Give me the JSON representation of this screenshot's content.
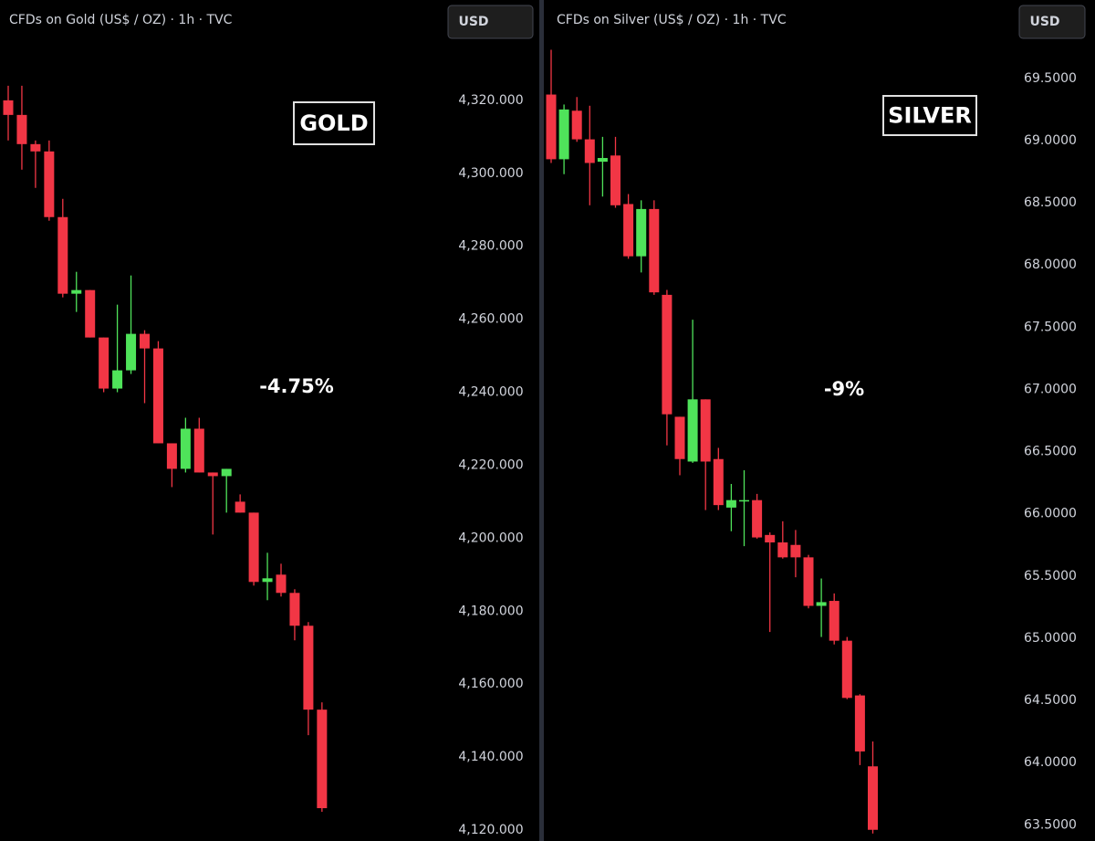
{
  "chart_data": [
    {
      "type": "candlestick",
      "title": "CFDs on Gold (US$ / OZ) · 1h · TVC",
      "currency": "USD",
      "annotations": [
        "GOLD",
        "-4.75%"
      ],
      "up_color": "#4fe35a",
      "down_color": "#f23645",
      "ylim": [
        4117,
        4347.5
      ],
      "yticks": [
        {
          "value": 4320,
          "label": "4,320.000"
        },
        {
          "value": 4300,
          "label": "4,300.000"
        },
        {
          "value": 4280,
          "label": "4,280.000"
        },
        {
          "value": 4260,
          "label": "4,260.000"
        },
        {
          "value": 4240,
          "label": "4,240.000"
        },
        {
          "value": 4220,
          "label": "4,220.000"
        },
        {
          "value": 4200,
          "label": "4,200.000"
        },
        {
          "value": 4180,
          "label": "4,180.000"
        },
        {
          "value": 4160,
          "label": "4,160.000"
        },
        {
          "value": 4140,
          "label": "4,140.000"
        },
        {
          "value": 4120,
          "label": "4,120.000"
        }
      ],
      "open": [
        4320,
        4316,
        4308,
        4306,
        4288,
        4267,
        4268,
        4255,
        4241,
        4246,
        4256,
        4252,
        4226,
        4219,
        4230,
        4218,
        4217,
        4210,
        4207,
        4188,
        4190,
        4185,
        4176,
        4153
      ],
      "high": [
        4324,
        4324,
        4309,
        4309,
        4293,
        4273,
        4268,
        4255,
        4264,
        4272,
        4257,
        4254,
        4226,
        4233,
        4233,
        4218,
        4219,
        4212,
        4207,
        4196,
        4193,
        4186,
        4177,
        4155
      ],
      "low": [
        4309,
        4301,
        4296,
        4287,
        4266,
        4262,
        4255,
        4240,
        4240,
        4245,
        4237,
        4226,
        4214,
        4218,
        4218,
        4201,
        4207,
        4207,
        4187,
        4183,
        4184,
        4172,
        4146,
        4125
      ],
      "close": [
        4316,
        4308,
        4306,
        4288,
        4267,
        4268,
        4255,
        4241,
        4246,
        4256,
        4252,
        4226,
        4219,
        4230,
        4218,
        4217,
        4219,
        4207,
        4188,
        4189,
        4185,
        4176,
        4153,
        4126
      ]
    },
    {
      "type": "candlestick",
      "title": "CFDs on Silver (US$ / OZ) · 1h · TVC",
      "currency": "USD",
      "annotations": [
        "SILVER",
        "-9%"
      ],
      "up_color": "#4fe35a",
      "down_color": "#f23645",
      "ylim": [
        63.37,
        70.13
      ],
      "yticks": [
        {
          "value": 69.5,
          "label": "69.5000"
        },
        {
          "value": 69,
          "label": "69.0000"
        },
        {
          "value": 68.5,
          "label": "68.5000"
        },
        {
          "value": 68,
          "label": "68.0000"
        },
        {
          "value": 67.5,
          "label": "67.5000"
        },
        {
          "value": 67,
          "label": "67.0000"
        },
        {
          "value": 66.5,
          "label": "66.5000"
        },
        {
          "value": 66,
          "label": "66.0000"
        },
        {
          "value": 65.5,
          "label": "65.5000"
        },
        {
          "value": 65,
          "label": "65.0000"
        },
        {
          "value": 64.5,
          "label": "64.5000"
        },
        {
          "value": 64,
          "label": "64.0000"
        },
        {
          "value": 63.5,
          "label": "63.5000"
        }
      ],
      "open": [
        69.37,
        68.85,
        69.24,
        69.01,
        68.83,
        68.88,
        68.49,
        68.07,
        68.45,
        67.76,
        66.78,
        66.42,
        66.92,
        66.44,
        66.05,
        66.1,
        66.11,
        65.83,
        65.77,
        65.75,
        65.65,
        65.26,
        65.3,
        64.98,
        64.54,
        63.97
      ],
      "high": [
        69.73,
        69.29,
        69.35,
        69.28,
        69.03,
        69.03,
        68.57,
        68.52,
        68.52,
        67.8,
        66.78,
        67.56,
        66.92,
        66.53,
        66.24,
        66.35,
        66.16,
        65.85,
        65.94,
        65.87,
        65.67,
        65.48,
        65.36,
        65.01,
        64.55,
        64.17
      ],
      "low": [
        68.82,
        68.73,
        68.99,
        68.48,
        68.55,
        68.46,
        68.05,
        67.94,
        67.76,
        66.55,
        66.31,
        66.41,
        66.03,
        66.03,
        65.86,
        65.74,
        65.8,
        65.05,
        65.64,
        65.49,
        65.24,
        65.01,
        64.95,
        64.51,
        63.98,
        63.43
      ],
      "close": [
        68.85,
        69.25,
        69.01,
        68.82,
        68.86,
        68.48,
        68.07,
        68.45,
        67.78,
        66.8,
        66.44,
        66.92,
        66.42,
        66.07,
        66.11,
        66.11,
        65.81,
        65.77,
        65.65,
        65.65,
        65.26,
        65.29,
        64.98,
        64.52,
        64.09,
        63.46
      ]
    }
  ]
}
